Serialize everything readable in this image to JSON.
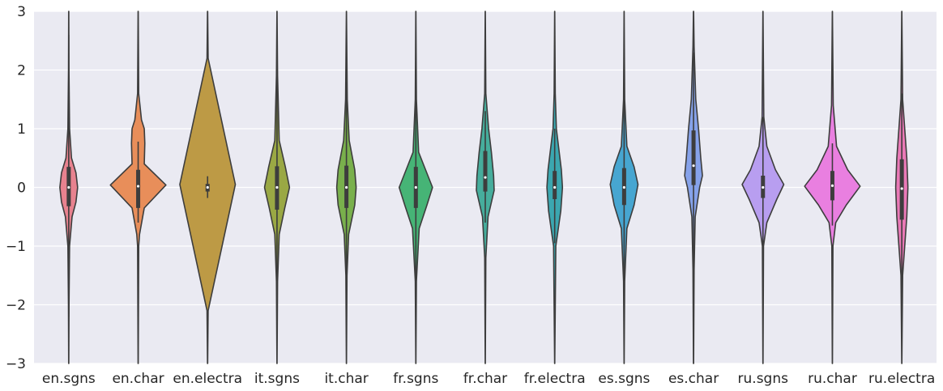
{
  "chart_data": {
    "type": "violin",
    "title": "",
    "xlabel": "",
    "ylabel": "",
    "ylim": [
      -3,
      3
    ],
    "yticks": [
      -3,
      -2,
      -1,
      0,
      1,
      2,
      3
    ],
    "ytick_labels": [
      "−3",
      "−2",
      "−1",
      "0",
      "1",
      "2",
      "3"
    ],
    "grid": true,
    "background": "#eaeaf2",
    "categories": [
      "en.sgns",
      "en.char",
      "en.electra",
      "it.sgns",
      "it.char",
      "fr.sgns",
      "fr.char",
      "fr.electra",
      "es.sgns",
      "es.char",
      "ru.sgns",
      "ru.char",
      "ru.electra"
    ],
    "series": [
      {
        "category": "en.sgns",
        "color": "#e8828f",
        "min": -3.0,
        "max": 3.0,
        "q1": -0.32,
        "median": 0.0,
        "q3": 0.35,
        "whisker_low": -2.2,
        "whisker_high": 2.6,
        "density": [
          [
            -3.0,
            0.002
          ],
          [
            -2.0,
            0.01
          ],
          [
            -1.0,
            0.03
          ],
          [
            -0.5,
            0.12
          ],
          [
            -0.25,
            0.26
          ],
          [
            0.0,
            0.32
          ],
          [
            0.25,
            0.26
          ],
          [
            0.5,
            0.1
          ],
          [
            1.0,
            0.03
          ],
          [
            2.0,
            0.008
          ],
          [
            3.0,
            0.002
          ]
        ]
      },
      {
        "category": "en.char",
        "color": "#e88e5a",
        "min": -3.0,
        "max": 3.0,
        "q1": -0.35,
        "median": 0.02,
        "q3": 0.3,
        "whisker_low": -0.6,
        "whisker_high": 0.78,
        "density": [
          [
            -3.0,
            0.003
          ],
          [
            -1.0,
            0.02
          ],
          [
            -0.8,
            0.05
          ],
          [
            -0.35,
            0.22
          ],
          [
            0.04,
            1.0
          ],
          [
            0.4,
            0.22
          ],
          [
            0.75,
            0.24
          ],
          [
            1.0,
            0.22
          ],
          [
            1.15,
            0.12
          ],
          [
            1.6,
            0.02
          ],
          [
            3.0,
            0.003
          ]
        ]
      },
      {
        "category": "en.electra",
        "color": "#bd9a45",
        "min": -3.0,
        "max": 3.0,
        "q1": -0.07,
        "median": 0.0,
        "q3": 0.06,
        "whisker_low": -0.18,
        "whisker_high": 0.19,
        "density": [
          [
            -3.0,
            0.003
          ],
          [
            -2.1,
            0.02
          ],
          [
            0.05,
            1.0
          ],
          [
            2.2,
            0.02
          ],
          [
            3.0,
            0.003
          ]
        ]
      },
      {
        "category": "it.sgns",
        "color": "#9aa844",
        "min": -3.0,
        "max": 3.0,
        "q1": -0.38,
        "median": 0.0,
        "q3": 0.36,
        "whisker_low": -1.6,
        "whisker_high": 1.9,
        "density": [
          [
            -3.0,
            0.002
          ],
          [
            -1.6,
            0.02
          ],
          [
            -0.8,
            0.08
          ],
          [
            -0.35,
            0.28
          ],
          [
            0.0,
            0.45
          ],
          [
            0.35,
            0.3
          ],
          [
            0.8,
            0.08
          ],
          [
            1.9,
            0.02
          ],
          [
            3.0,
            0.002
          ]
        ]
      },
      {
        "category": "it.char",
        "color": "#79b04c",
        "min": -3.0,
        "max": 3.0,
        "q1": -0.35,
        "median": 0.0,
        "q3": 0.37,
        "whisker_low": -1.8,
        "whisker_high": 1.8,
        "density": [
          [
            -3.0,
            0.002
          ],
          [
            -1.5,
            0.02
          ],
          [
            -0.8,
            0.08
          ],
          [
            -0.3,
            0.3
          ],
          [
            0.0,
            0.35
          ],
          [
            0.3,
            0.3
          ],
          [
            0.8,
            0.1
          ],
          [
            1.5,
            0.03
          ],
          [
            3.0,
            0.002
          ]
        ]
      },
      {
        "category": "fr.sgns",
        "color": "#46b476",
        "min": -3.0,
        "max": 3.0,
        "q1": -0.35,
        "median": 0.0,
        "q3": 0.35,
        "whisker_low": -1.9,
        "whisker_high": 2.0,
        "density": [
          [
            -3.0,
            0.002
          ],
          [
            -1.6,
            0.02
          ],
          [
            -0.7,
            0.12
          ],
          [
            -0.3,
            0.4
          ],
          [
            0.0,
            0.6
          ],
          [
            0.3,
            0.35
          ],
          [
            0.6,
            0.1
          ],
          [
            1.5,
            0.02
          ],
          [
            3.0,
            0.002
          ]
        ]
      },
      {
        "category": "fr.char",
        "color": "#46ad9c",
        "min": -3.0,
        "max": 3.0,
        "q1": -0.07,
        "median": 0.17,
        "q3": 0.62,
        "whisker_low": -0.6,
        "whisker_high": 1.3,
        "density": [
          [
            -3.0,
            0.002
          ],
          [
            -1.2,
            0.02
          ],
          [
            -0.5,
            0.1
          ],
          [
            -0.05,
            0.32
          ],
          [
            0.2,
            0.3
          ],
          [
            0.6,
            0.22
          ],
          [
            1.0,
            0.12
          ],
          [
            1.6,
            0.02
          ],
          [
            3.0,
            0.002
          ]
        ]
      },
      {
        "category": "fr.electra",
        "color": "#3ba7b0",
        "min": -3.0,
        "max": 3.0,
        "q1": -0.2,
        "median": 0.0,
        "q3": 0.28,
        "whisker_low": -0.95,
        "whisker_high": 1.0,
        "density": [
          [
            -3.0,
            0.002
          ],
          [
            -1.0,
            0.04
          ],
          [
            -0.4,
            0.22
          ],
          [
            0.0,
            0.28
          ],
          [
            0.3,
            0.24
          ],
          [
            1.0,
            0.06
          ],
          [
            1.6,
            0.02
          ],
          [
            3.0,
            0.002
          ]
        ]
      },
      {
        "category": "es.sgns",
        "color": "#47a6d1",
        "min": -3.0,
        "max": 3.0,
        "q1": -0.3,
        "median": 0.0,
        "q3": 0.33,
        "whisker_low": -1.8,
        "whisker_high": 2.0,
        "density": [
          [
            -3.0,
            0.002
          ],
          [
            -1.6,
            0.02
          ],
          [
            -0.7,
            0.1
          ],
          [
            -0.3,
            0.36
          ],
          [
            0.05,
            0.5
          ],
          [
            0.35,
            0.36
          ],
          [
            0.7,
            0.1
          ],
          [
            1.5,
            0.02
          ],
          [
            3.0,
            0.002
          ]
        ]
      },
      {
        "category": "es.char",
        "color": "#86a2ea",
        "min": -3.0,
        "max": 3.0,
        "q1": 0.04,
        "median": 0.37,
        "q3": 0.97,
        "whisker_low": -1.35,
        "whisker_high": 2.3,
        "density": [
          [
            -3.0,
            0.003
          ],
          [
            -1.4,
            0.02
          ],
          [
            -0.5,
            0.06
          ],
          [
            0.0,
            0.22
          ],
          [
            0.2,
            0.32
          ],
          [
            0.5,
            0.26
          ],
          [
            1.0,
            0.18
          ],
          [
            1.5,
            0.08
          ],
          [
            2.4,
            0.02
          ],
          [
            3.0,
            0.003
          ]
        ]
      },
      {
        "category": "ru.sgns",
        "color": "#b89ef0",
        "min": -3.0,
        "max": 3.0,
        "q1": -0.18,
        "median": 0.0,
        "q3": 0.2,
        "whisker_low": -1.0,
        "whisker_high": 1.2,
        "density": [
          [
            -3.0,
            0.002
          ],
          [
            -1.0,
            0.02
          ],
          [
            -0.6,
            0.14
          ],
          [
            -0.2,
            0.5
          ],
          [
            0.05,
            0.75
          ],
          [
            0.3,
            0.45
          ],
          [
            0.7,
            0.14
          ],
          [
            1.2,
            0.03
          ],
          [
            3.0,
            0.002
          ]
        ]
      },
      {
        "category": "ru.char",
        "color": "#e97fe0",
        "min": -3.0,
        "max": 3.0,
        "q1": -0.22,
        "median": 0.03,
        "q3": 0.28,
        "whisker_low": -0.65,
        "whisker_high": 0.75,
        "density": [
          [
            -3.0,
            0.002
          ],
          [
            -1.0,
            0.02
          ],
          [
            -0.6,
            0.12
          ],
          [
            -0.3,
            0.5
          ],
          [
            0.02,
            1.0
          ],
          [
            0.3,
            0.55
          ],
          [
            0.7,
            0.15
          ],
          [
            1.4,
            0.03
          ],
          [
            3.0,
            0.002
          ]
        ]
      },
      {
        "category": "ru.electra",
        "color": "#ea79b7",
        "min": -3.0,
        "max": 3.0,
        "q1": -0.55,
        "median": -0.02,
        "q3": 0.48,
        "whisker_low": -1.9,
        "whisker_high": 1.6,
        "density": [
          [
            -3.0,
            0.002
          ],
          [
            -1.5,
            0.03
          ],
          [
            -0.5,
            0.18
          ],
          [
            0.0,
            0.22
          ],
          [
            0.5,
            0.18
          ],
          [
            1.5,
            0.03
          ],
          [
            3.0,
            0.002
          ]
        ]
      }
    ]
  }
}
